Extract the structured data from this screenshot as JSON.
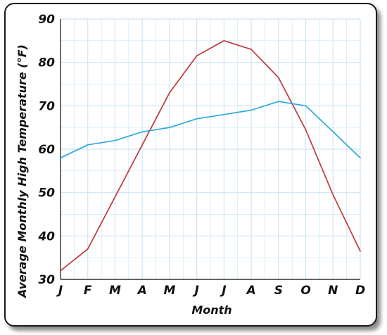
{
  "chart_data": {
    "type": "line",
    "xlabel": "Month",
    "ylabel": "Average Monthly High Temperature (°F)",
    "categories": [
      "J",
      "F",
      "M",
      "A",
      "M",
      "J",
      "J",
      "A",
      "S",
      "O",
      "N",
      "D"
    ],
    "ylim": [
      30,
      90
    ],
    "yticks": [
      30,
      40,
      50,
      60,
      70,
      80,
      90
    ],
    "grid": true,
    "legend": "none",
    "series": [
      {
        "color": "#c0393b",
        "values": [
          32,
          37,
          49,
          61,
          73,
          81.5,
          85,
          83,
          76.5,
          64.5,
          49.5,
          36.5
        ]
      },
      {
        "color": "#2ea8db",
        "values": [
          58,
          61,
          62,
          64,
          65,
          67,
          68,
          69,
          71,
          70,
          64,
          58
        ]
      }
    ],
    "colors": {
      "grid": "#cde6f5",
      "axis": "#333333",
      "frame": "#1a1a1a"
    }
  }
}
